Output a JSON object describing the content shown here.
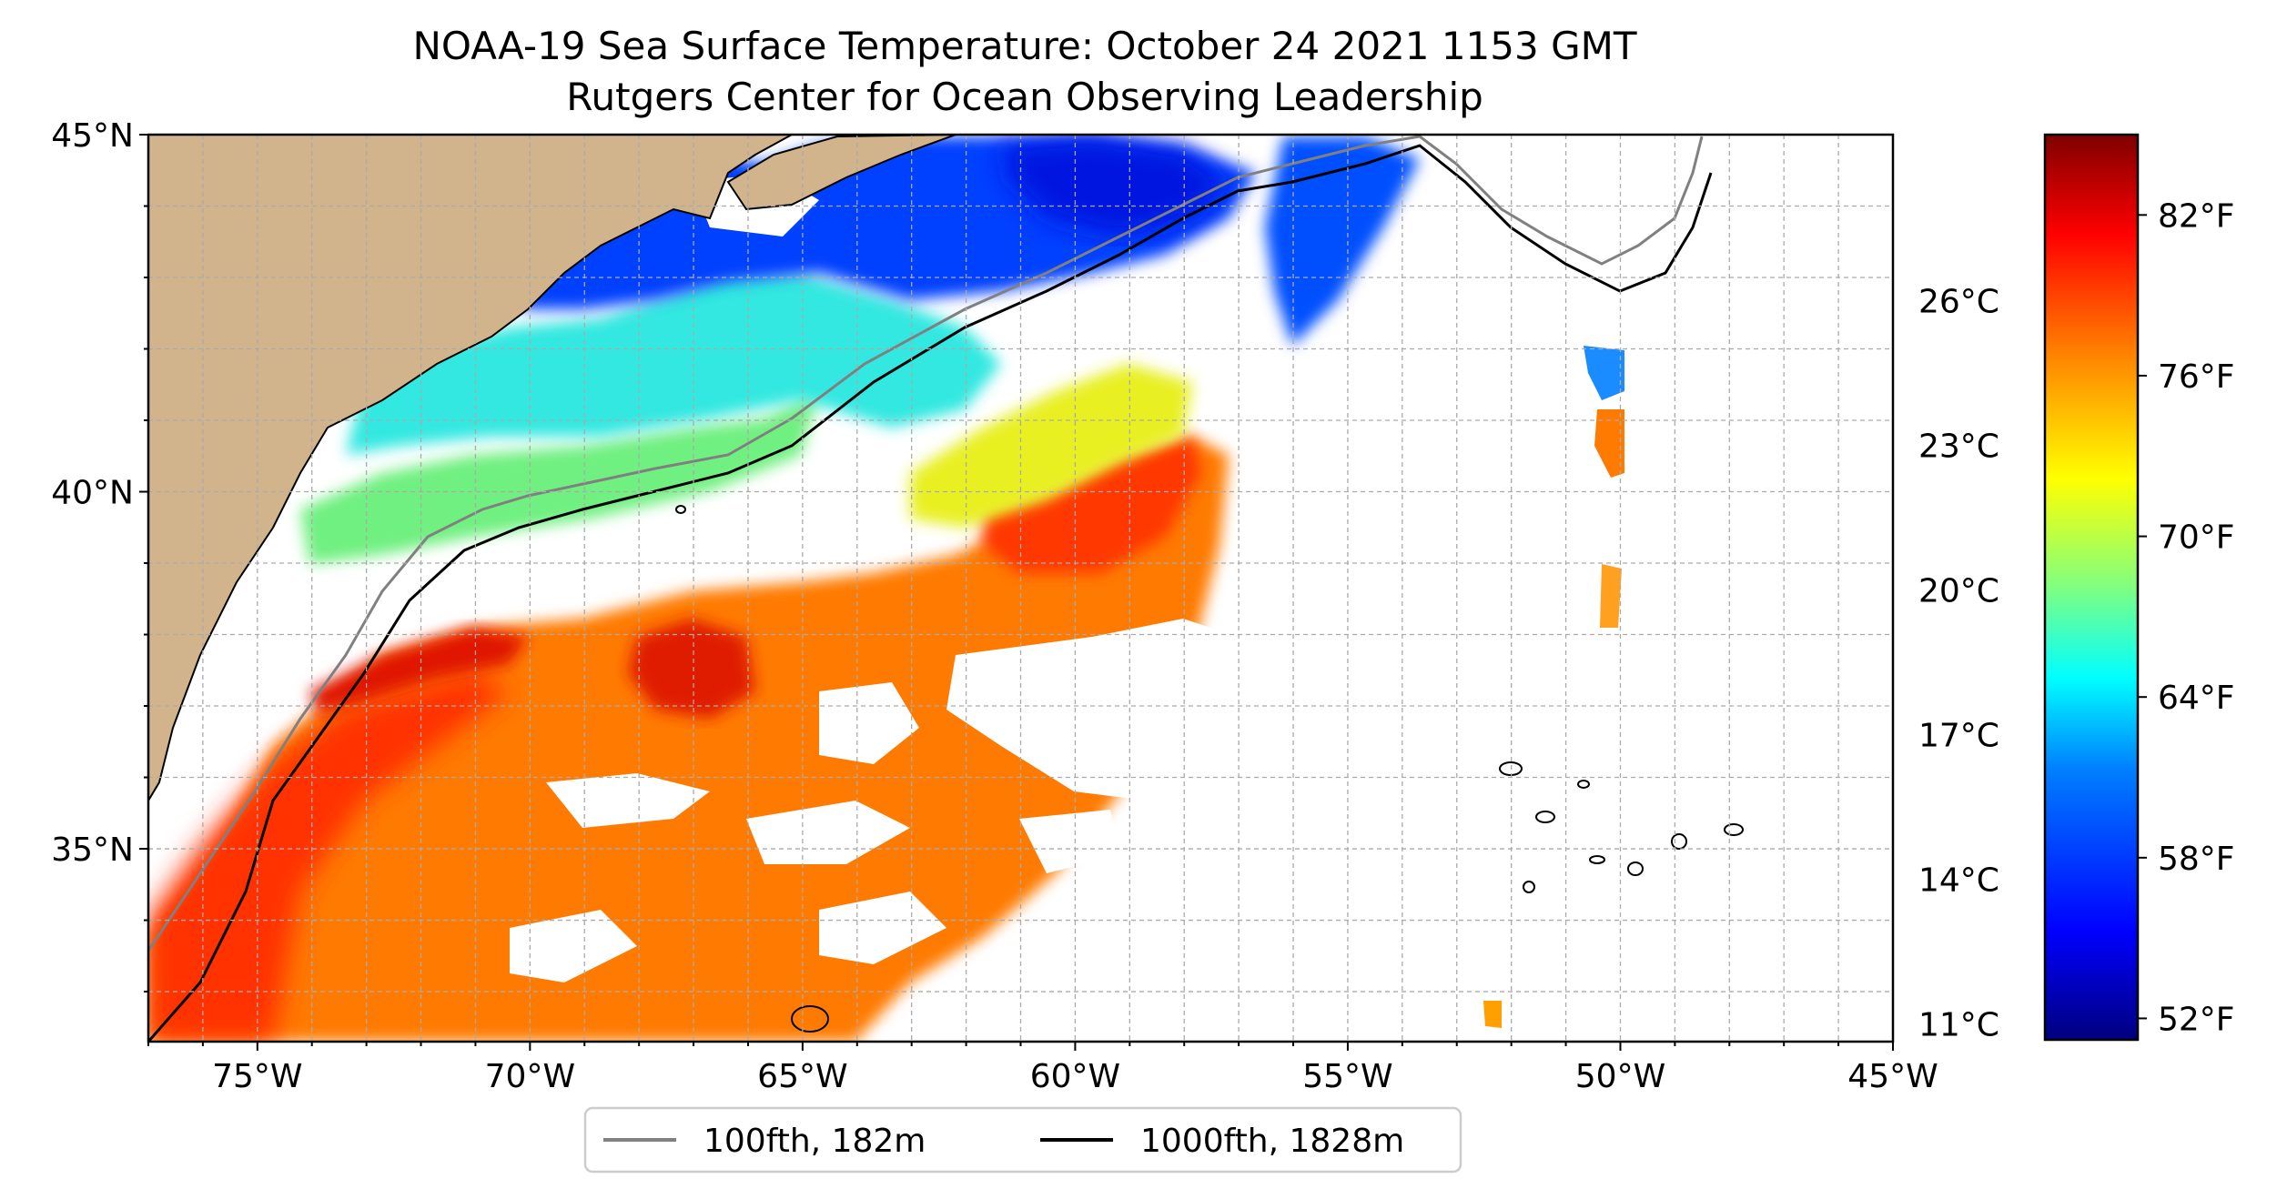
{
  "title": {
    "line1": "NOAA-19 Sea Surface Temperature: October 24 2021 1153 GMT",
    "line2": "Rutgers Center for Ocean Observing Leadership"
  },
  "map": {
    "lon_range": [
      -77,
      -45
    ],
    "lat_range": [
      32.3,
      45
    ],
    "x_ticks": [
      {
        "value": -75,
        "label": "75°W"
      },
      {
        "value": -70,
        "label": "70°W"
      },
      {
        "value": -65,
        "label": "65°W"
      },
      {
        "value": -60,
        "label": "60°W"
      },
      {
        "value": -55,
        "label": "55°W"
      },
      {
        "value": -50,
        "label": "50°W"
      },
      {
        "value": -45,
        "label": "45°W"
      }
    ],
    "y_ticks": [
      {
        "value": 45,
        "label": "45°N"
      },
      {
        "value": 40,
        "label": "40°N"
      },
      {
        "value": 35,
        "label": "35°N"
      }
    ],
    "grid": true,
    "land_color": "#d2b48c"
  },
  "colorbar": {
    "min_f": 51.2,
    "max_f": 85.0,
    "f_ticks": [
      {
        "value": 82,
        "label": "82°F"
      },
      {
        "value": 76,
        "label": "76°F"
      },
      {
        "value": 70,
        "label": "70°F"
      },
      {
        "value": 64,
        "label": "64°F"
      },
      {
        "value": 58,
        "label": "58°F"
      },
      {
        "value": 52,
        "label": "52°F"
      }
    ],
    "c_ticks": [
      {
        "value": 26,
        "label": "26°C"
      },
      {
        "value": 23,
        "label": "23°C"
      },
      {
        "value": 20,
        "label": "20°C"
      },
      {
        "value": 17,
        "label": "17°C"
      },
      {
        "value": 14,
        "label": "14°C"
      },
      {
        "value": 11,
        "label": "11°C"
      }
    ],
    "colors": [
      "#00007f",
      "#0000ff",
      "#0080ff",
      "#00ffff",
      "#80ff80",
      "#ffff00",
      "#ff8000",
      "#ff0000",
      "#7f0000"
    ]
  },
  "legend": {
    "position": "bottom-center",
    "items": [
      {
        "label": "100fth, 182m",
        "color": "#808080"
      },
      {
        "label": "1000fth, 1828m",
        "color": "#000000"
      }
    ]
  }
}
